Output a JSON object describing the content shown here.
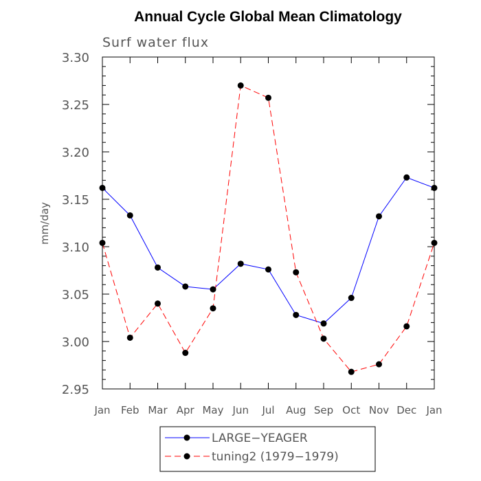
{
  "chart_data": {
    "type": "line",
    "title": "Annual Cycle Global Mean Climatology",
    "subtitle": "Surf water flux",
    "xlabel": "",
    "ylabel": "mm/day",
    "categories": [
      "Jan",
      "Feb",
      "Mar",
      "Apr",
      "May",
      "Jun",
      "Jul",
      "Aug",
      "Sep",
      "Oct",
      "Nov",
      "Dec",
      "Jan"
    ],
    "ylim": [
      2.95,
      3.3
    ],
    "yticks": [
      "2.95",
      "3.00",
      "3.05",
      "3.10",
      "3.15",
      "3.20",
      "3.25",
      "3.30"
    ],
    "series": [
      {
        "name": "LARGE−YEAGER",
        "color": "#0000ff",
        "dash": "solid",
        "values": [
          3.162,
          3.133,
          3.078,
          3.058,
          3.055,
          3.082,
          3.076,
          3.028,
          3.019,
          3.046,
          3.132,
          3.173,
          3.162
        ]
      },
      {
        "name": "tuning2 (1979−1979)",
        "color": "#ff0000",
        "dash": "dashed",
        "values": [
          3.104,
          3.004,
          3.04,
          2.988,
          3.035,
          3.27,
          3.257,
          3.073,
          3.003,
          2.968,
          2.976,
          3.016,
          3.104
        ]
      }
    ],
    "legend_position": "bottom-center"
  }
}
